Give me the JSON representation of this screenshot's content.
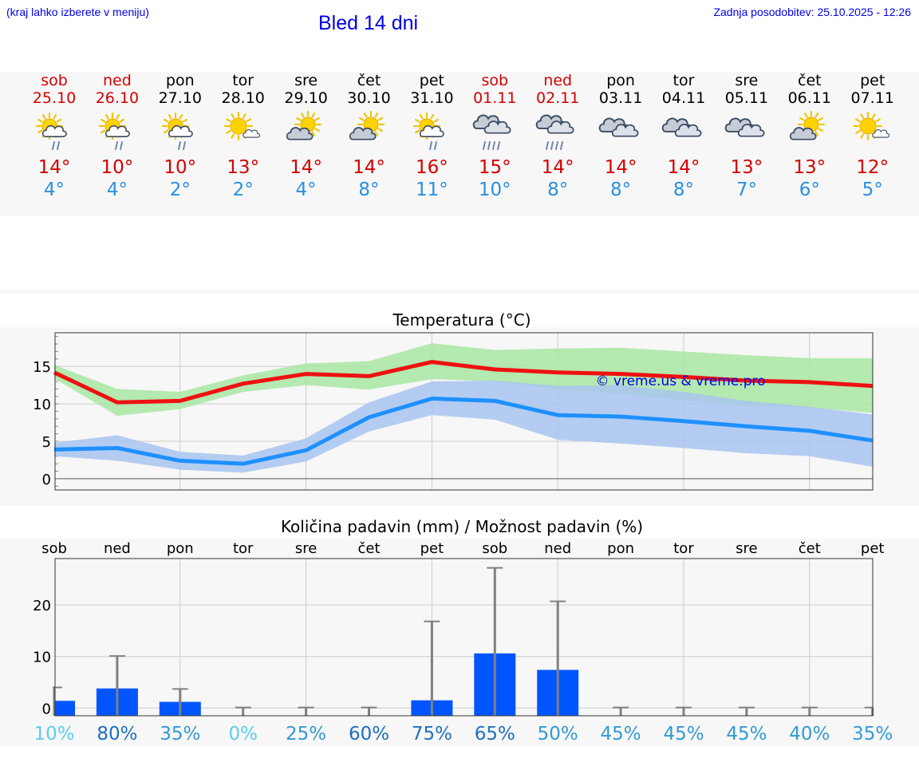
{
  "header": {
    "city_hint": "(kraj lahko izberete v meniju)",
    "title": "Bled 14 dni",
    "updated": "Zadnja posodobitev: 25.10.2025 - 12:26"
  },
  "days": [
    {
      "name": "sob",
      "date": "25.10",
      "weekend": true,
      "icon": "sun-cloud-light-rain-icon",
      "max": "14°",
      "min": "4°"
    },
    {
      "name": "ned",
      "date": "26.10",
      "weekend": true,
      "icon": "sun-cloud-light-rain-icon",
      "max": "10°",
      "min": "4°"
    },
    {
      "name": "pon",
      "date": "27.10",
      "weekend": false,
      "icon": "sun-cloud-light-rain-icon",
      "max": "10°",
      "min": "2°"
    },
    {
      "name": "tor",
      "date": "28.10",
      "weekend": false,
      "icon": "sun-small-cloud-icon",
      "max": "13°",
      "min": "2°"
    },
    {
      "name": "sre",
      "date": "29.10",
      "weekend": false,
      "icon": "sun-cloud-icon",
      "max": "14°",
      "min": "4°"
    },
    {
      "name": "čet",
      "date": "30.10",
      "weekend": false,
      "icon": "sun-cloud-icon",
      "max": "14°",
      "min": "8°"
    },
    {
      "name": "pet",
      "date": "31.10",
      "weekend": false,
      "icon": "sun-cloud-light-rain-icon",
      "max": "16°",
      "min": "11°"
    },
    {
      "name": "sob",
      "date": "01.11",
      "weekend": true,
      "icon": "cloud-rain-icon",
      "max": "15°",
      "min": "10°"
    },
    {
      "name": "ned",
      "date": "02.11",
      "weekend": true,
      "icon": "cloud-rain-icon",
      "max": "14°",
      "min": "8°"
    },
    {
      "name": "pon",
      "date": "03.11",
      "weekend": false,
      "icon": "overcast-icon",
      "max": "14°",
      "min": "8°"
    },
    {
      "name": "tor",
      "date": "04.11",
      "weekend": false,
      "icon": "overcast-icon",
      "max": "14°",
      "min": "8°"
    },
    {
      "name": "sre",
      "date": "05.11",
      "weekend": false,
      "icon": "overcast-icon",
      "max": "13°",
      "min": "7°"
    },
    {
      "name": "čet",
      "date": "06.11",
      "weekend": false,
      "icon": "sun-cloud-icon",
      "max": "13°",
      "min": "6°"
    },
    {
      "name": "pet",
      "date": "07.11",
      "weekend": false,
      "icon": "sun-small-cloud-icon",
      "max": "12°",
      "min": "5°"
    }
  ],
  "colors": {
    "max_line": "#ee1111",
    "min_line": "#1e90ff",
    "max_band": "#a8e6a2",
    "min_band": "#a8c4f0",
    "overlap_band": "#7fbf9a",
    "bar": "#0055ff",
    "error_bar": "#808080",
    "link": "#0000e6"
  },
  "chart_data": [
    {
      "type": "line",
      "title": "Temperatura (°C)",
      "watermark": "© vreme.us & vreme.pro",
      "x": [
        0,
        1,
        2,
        3,
        4,
        5,
        6,
        7,
        8,
        9,
        10,
        11,
        12,
        13
      ],
      "yticks": [
        0,
        5,
        10,
        15
      ],
      "ylim": [
        -1.5,
        19.5
      ],
      "series": [
        {
          "name": "max",
          "values": [
            14.2,
            10.2,
            10.4,
            12.7,
            14.0,
            13.7,
            15.6,
            14.6,
            14.2,
            14.0,
            13.6,
            13.1,
            12.9,
            12.4
          ],
          "band_low": [
            13.4,
            8.4,
            9.3,
            11.6,
            12.5,
            11.9,
            13.3,
            13.0,
            12.0,
            11.3,
            10.5,
            9.7,
            9.5,
            8.8
          ],
          "band_high": [
            15.2,
            12.0,
            11.6,
            13.8,
            15.4,
            15.7,
            18.1,
            17.2,
            17.4,
            17.5,
            17.0,
            16.5,
            16.1,
            16.1
          ]
        },
        {
          "name": "min",
          "values": [
            3.9,
            4.1,
            2.4,
            2.0,
            3.8,
            8.2,
            10.7,
            10.4,
            8.5,
            8.3,
            7.7,
            7.0,
            6.4,
            5.1
          ],
          "band_low": [
            3.0,
            2.4,
            1.2,
            0.8,
            2.3,
            6.3,
            8.5,
            7.9,
            5.2,
            4.7,
            4.1,
            3.4,
            3.0,
            1.6
          ],
          "band_high": [
            4.8,
            5.8,
            3.6,
            3.1,
            5.4,
            10.2,
            13.0,
            13.1,
            12.4,
            12.5,
            11.6,
            10.4,
            9.6,
            8.6
          ]
        }
      ]
    },
    {
      "type": "bar",
      "title": "Količina padavin (mm) / Možnost padavin (%)",
      "categories": [
        "sob",
        "ned",
        "pon",
        "tor",
        "sre",
        "čet",
        "pet",
        "sob",
        "ned",
        "pon",
        "tor",
        "sre",
        "čet",
        "pet"
      ],
      "values": [
        1.4,
        3.8,
        1.2,
        0,
        0,
        0,
        1.5,
        10.6,
        7.4,
        0,
        0,
        0,
        0,
        0
      ],
      "upper": [
        4.0,
        10.1,
        3.7,
        0.1,
        0.1,
        0.1,
        16.8,
        27.2,
        20.7,
        0.1,
        0.1,
        0.1,
        0.1,
        0.1
      ],
      "probability": [
        "10%",
        "80%",
        "35%",
        "0%",
        "25%",
        "60%",
        "75%",
        "65%",
        "50%",
        "45%",
        "45%",
        "45%",
        "40%",
        "35%"
      ],
      "probability_colors": [
        "#5bcfe6",
        "#1e6fbf",
        "#3399d6",
        "#5bcfe6",
        "#3399d6",
        "#1e6fbf",
        "#1e6fbf",
        "#1e6fbf",
        "#3399d6",
        "#3399d6",
        "#3399d6",
        "#3399d6",
        "#3399d6",
        "#3399d6"
      ],
      "yticks": [
        0,
        10,
        20
      ],
      "ylim": [
        -1.5,
        29
      ]
    }
  ]
}
